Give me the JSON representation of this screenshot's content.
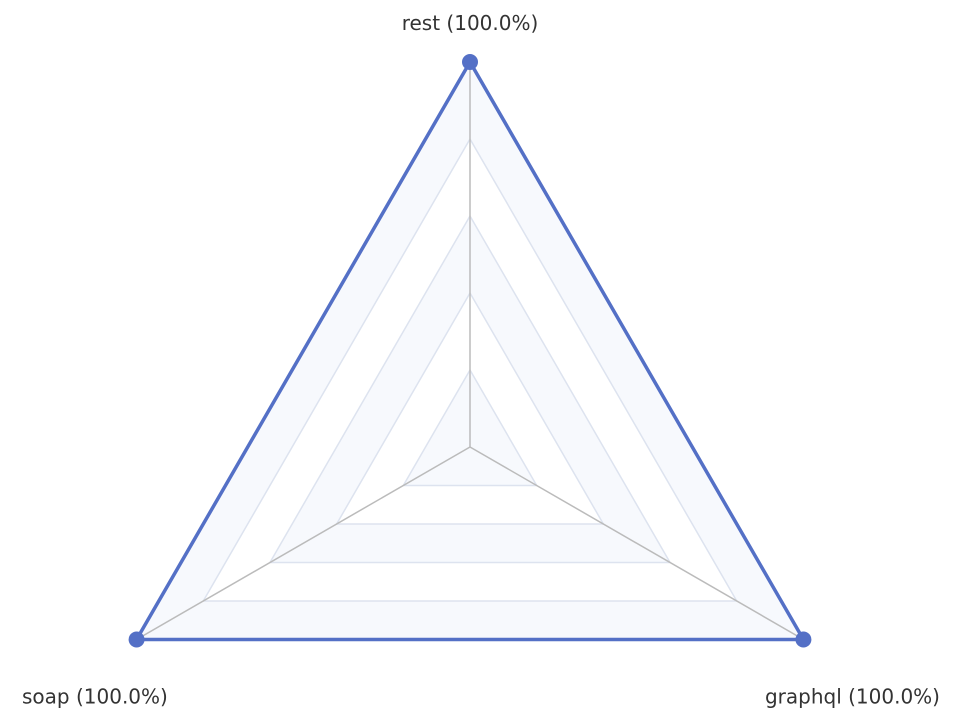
{
  "chart_data": {
    "type": "radar",
    "axes": [
      {
        "name": "rest",
        "value": 100.0,
        "label": "rest (100.0%)"
      },
      {
        "name": "graphql",
        "value": 100.0,
        "label": "graphql (100.0%)"
      },
      {
        "name": "soap",
        "value": 100.0,
        "label": "soap (100.0%)"
      }
    ],
    "range": [
      0,
      100
    ],
    "levels": [
      20,
      40,
      60,
      80,
      100
    ],
    "grid": true,
    "series_color": "#5470c6",
    "grid_fill_colors": [
      "#f7f9fd",
      "#ffffff"
    ],
    "grid_line_color": "#dde3ef",
    "axis_line_color": "#bbbbbb"
  }
}
